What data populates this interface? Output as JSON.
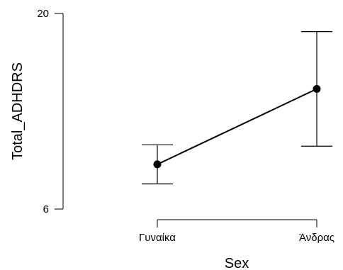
{
  "chart_data": {
    "type": "line",
    "xlabel": "Sex",
    "ylabel": "Total_ADHDRS",
    "categories": [
      "Γυναίκα",
      "Άνδρας"
    ],
    "series": [
      {
        "values": [
          9.2,
          14.6
        ],
        "ci_lower": [
          7.8,
          10.5
        ],
        "ci_upper": [
          10.6,
          18.7
        ]
      }
    ],
    "ylim": [
      6,
      20
    ],
    "yticks": [
      "6",
      "20"
    ],
    "grid": false,
    "legend": "none"
  }
}
